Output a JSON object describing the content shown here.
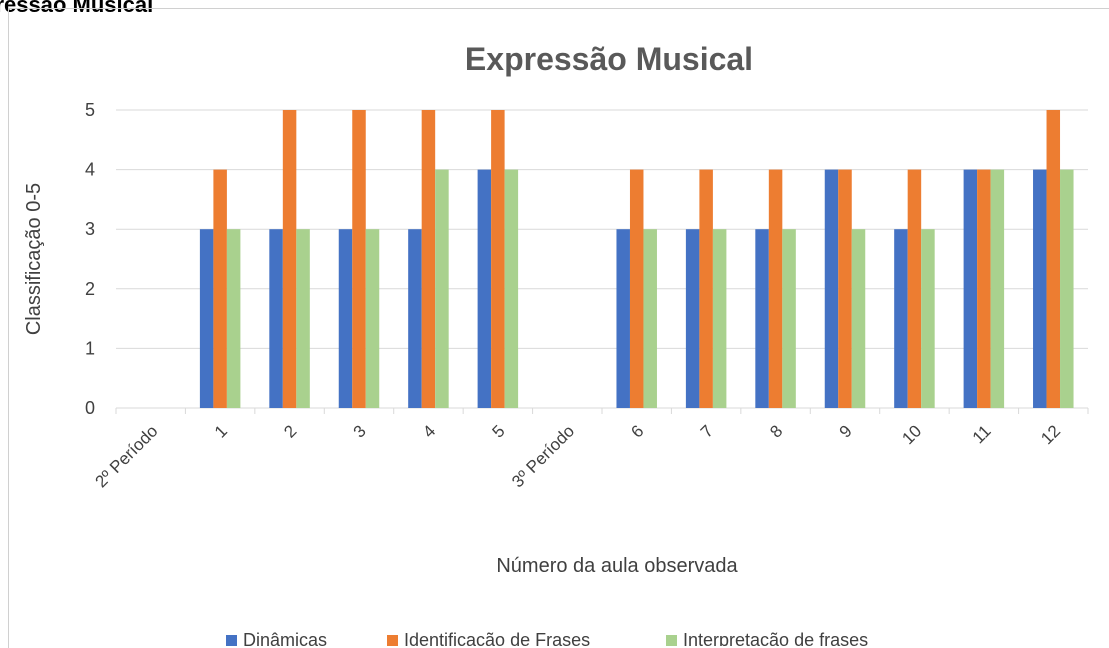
{
  "page": {
    "heading": "pressão Musical"
  },
  "chart_data": {
    "type": "bar",
    "title": "Expressão Musical",
    "xlabel": "Número da aula observada",
    "ylabel": "Classificação 0-5",
    "ylim": [
      0,
      5
    ],
    "yticks": [
      0,
      1,
      2,
      3,
      4,
      5
    ],
    "grid": true,
    "legend_position": "bottom",
    "categories": [
      "2º Período",
      "1",
      "2",
      "3",
      "4",
      "5",
      "3º Período",
      "6",
      "7",
      "8",
      "9",
      "10",
      "11",
      "12"
    ],
    "series": [
      {
        "name": "Dinâmicas",
        "color": "#4472C4",
        "values": [
          null,
          3,
          3,
          3,
          3,
          4,
          null,
          3,
          3,
          3,
          4,
          3,
          4,
          4
        ]
      },
      {
        "name": "Identificação de Frases",
        "color": "#ED7D31",
        "values": [
          null,
          4,
          5,
          5,
          5,
          5,
          null,
          4,
          4,
          4,
          4,
          4,
          4,
          5
        ]
      },
      {
        "name": "Interpretação de frases",
        "color": "#A9D18E",
        "values": [
          null,
          3,
          3,
          3,
          4,
          4,
          null,
          3,
          3,
          3,
          3,
          3,
          4,
          4
        ]
      }
    ]
  }
}
